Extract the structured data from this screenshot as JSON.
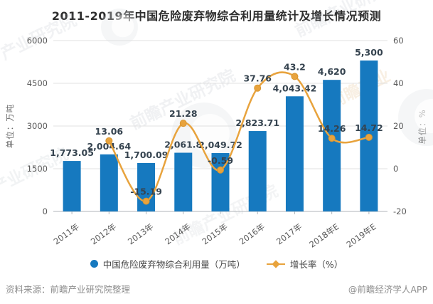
{
  "title": "2011-2019年中国危险废弃物综合利用量统计及增长情况预测",
  "chart_data": {
    "type": "bar",
    "subtype": "combo-bar-line",
    "title": "2011-2019年中国危险废弃物综合利用量统计及增长情况预测",
    "categories": [
      "2011年",
      "2012年",
      "2013年",
      "2014年",
      "2015年",
      "2016年",
      "2017年",
      "2018年E",
      "2019年E"
    ],
    "series": [
      {
        "name": "中国危险废弃物综合利用量（万吨）",
        "type": "bar",
        "axis": "left",
        "color": "#1679BF",
        "values": [
          1773.05,
          2004.64,
          1700.09,
          2061.8,
          2049.72,
          2823.71,
          4043.42,
          4620,
          5300
        ],
        "labels": [
          "1,773.05",
          "2,004.64",
          "1,700.09",
          "2,061.8",
          "2,049.72",
          "2,823.71",
          "4,043.42",
          "4,620",
          "5,300"
        ]
      },
      {
        "name": "增长率（%）",
        "type": "line",
        "axis": "right",
        "color": "#E8A33D",
        "values": [
          null,
          13.06,
          -15.19,
          21.28,
          -0.59,
          37.76,
          43.2,
          14.26,
          14.72
        ],
        "labels": [
          null,
          "13.06",
          "-15.19",
          "21.28",
          "-0.59",
          "37.76",
          "43.2",
          "14.26",
          "14.72"
        ]
      }
    ],
    "left_axis": {
      "title": "单位：万吨",
      "min": 0,
      "max": 6000,
      "tick_values": [
        0,
        1500,
        3000,
        4500,
        6000
      ],
      "tick_labels": [
        "0",
        "1500",
        "3000",
        "4500",
        "6000"
      ]
    },
    "right_axis": {
      "title": "单位：%",
      "min": -20,
      "max": 60,
      "tick_values": [
        -20,
        0,
        20,
        40,
        60
      ],
      "tick_labels": [
        "-20",
        "0",
        "20",
        "40",
        "60"
      ]
    },
    "grid": true,
    "legend_position": "bottom",
    "label_color": "#35434F"
  },
  "footer": {
    "source": "资料来源：前瞻产业研究院整理",
    "credit": "@前瞻经济学人APP"
  },
  "watermark": {
    "brand": "前瞻产业研究院",
    "texts": [
      "产业研究院",
      "前瞻产业研究院",
      "前瞻产业研究院",
      "产业研究院",
      "前瞻产业研究院",
      "前瞻产业"
    ]
  }
}
